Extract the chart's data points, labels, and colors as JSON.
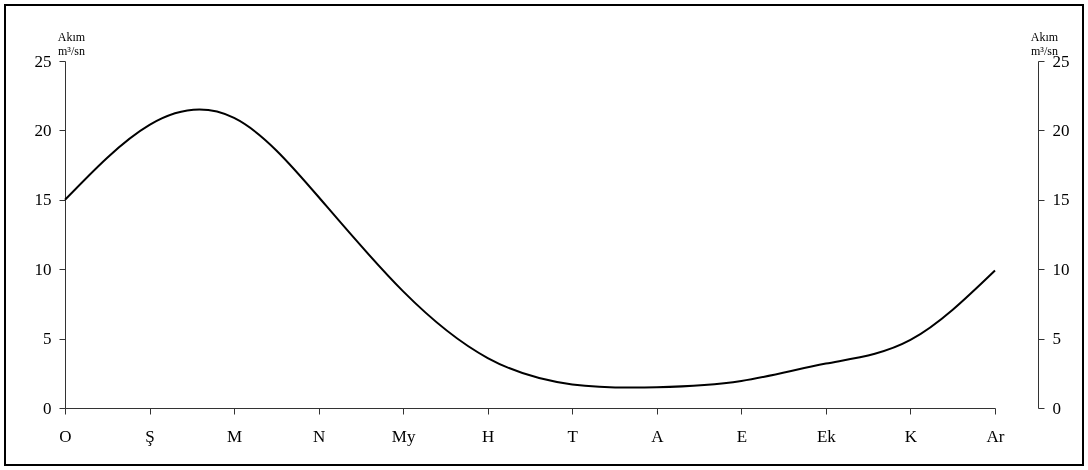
{
  "chart_data": {
    "type": "line",
    "ylabel": "Akım m³/sn",
    "y2label": "Akım m³/sn",
    "categories": [
      "O",
      "Ş",
      "M",
      "N",
      "My",
      "H",
      "T",
      "A",
      "E",
      "Ek",
      "K",
      "Ar"
    ],
    "series": [
      {
        "color": "#000000",
        "values": [
          15.0,
          20.4,
          20.9,
          15.2,
          8.4,
          3.6,
          1.7,
          1.5,
          1.95,
          3.2,
          4.9,
          9.9
        ]
      }
    ],
    "ylim": [
      0,
      25
    ],
    "yticks": [
      0,
      5,
      10,
      15,
      20,
      25
    ],
    "y2lim": [
      0,
      25
    ],
    "y2ticks": [
      0,
      5,
      10,
      15,
      20,
      25
    ],
    "grid": false,
    "marker": "none",
    "line_style": "solid"
  }
}
